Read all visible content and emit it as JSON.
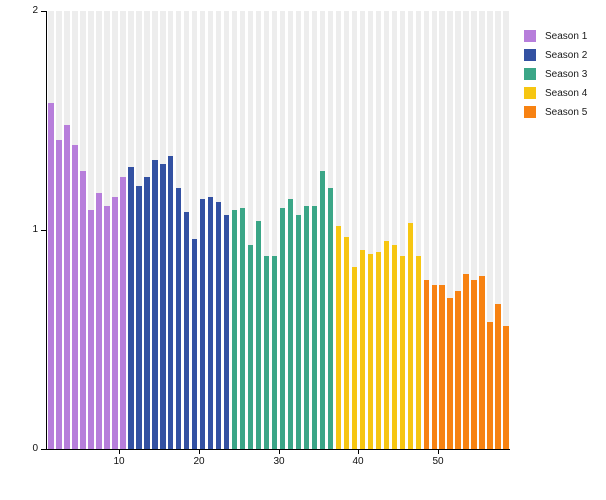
{
  "chart_data": {
    "type": "bar",
    "title": "",
    "xlabel": "",
    "ylabel": "",
    "x_range": [
      1,
      58
    ],
    "ylim": [
      0,
      2
    ],
    "y_tick_values": [
      0,
      1,
      2
    ],
    "y_tick_labels": [
      "0",
      "1",
      "2"
    ],
    "x_tick_values": [
      10,
      20,
      30,
      40,
      50
    ],
    "x_tick_labels": [
      "10",
      "20",
      "30",
      "40",
      "50"
    ],
    "grid": false,
    "legend_position": "top-right",
    "backdrop": {
      "value": 2,
      "color": "#ededed"
    },
    "axis_color": "#000000",
    "tick_label_color": "#111111",
    "series": [
      {
        "name": "Season 1",
        "color": "#b77edb",
        "episode_start": 1,
        "values": [
          1.58,
          1.41,
          1.48,
          1.39,
          1.27,
          1.09,
          1.17,
          1.11,
          1.15,
          1.24
        ]
      },
      {
        "name": "Season 2",
        "color": "#3351a2",
        "episode_start": 11,
        "values": [
          1.29,
          1.2,
          1.24,
          1.32,
          1.3,
          1.34,
          1.19,
          1.08,
          0.96,
          1.14,
          1.15,
          1.13,
          1.07
        ]
      },
      {
        "name": "Season 3",
        "color": "#3ba687",
        "episode_start": 24,
        "values": [
          1.09,
          1.1,
          0.93,
          1.04,
          0.88,
          0.88,
          1.1,
          1.14,
          1.07,
          1.11,
          1.11,
          1.27,
          1.19
        ]
      },
      {
        "name": "Season 4",
        "color": "#f6c612",
        "episode_start": 37,
        "values": [
          1.02,
          0.97,
          0.83,
          0.91,
          0.89,
          0.9,
          0.95,
          0.93,
          0.88,
          1.03,
          0.88
        ]
      },
      {
        "name": "Season 5",
        "color": "#f78212",
        "episode_start": 48,
        "values": [
          0.77,
          0.75,
          0.75,
          0.69,
          0.72,
          0.8,
          0.77,
          0.79,
          0.58,
          0.66,
          0.56
        ]
      }
    ]
  }
}
